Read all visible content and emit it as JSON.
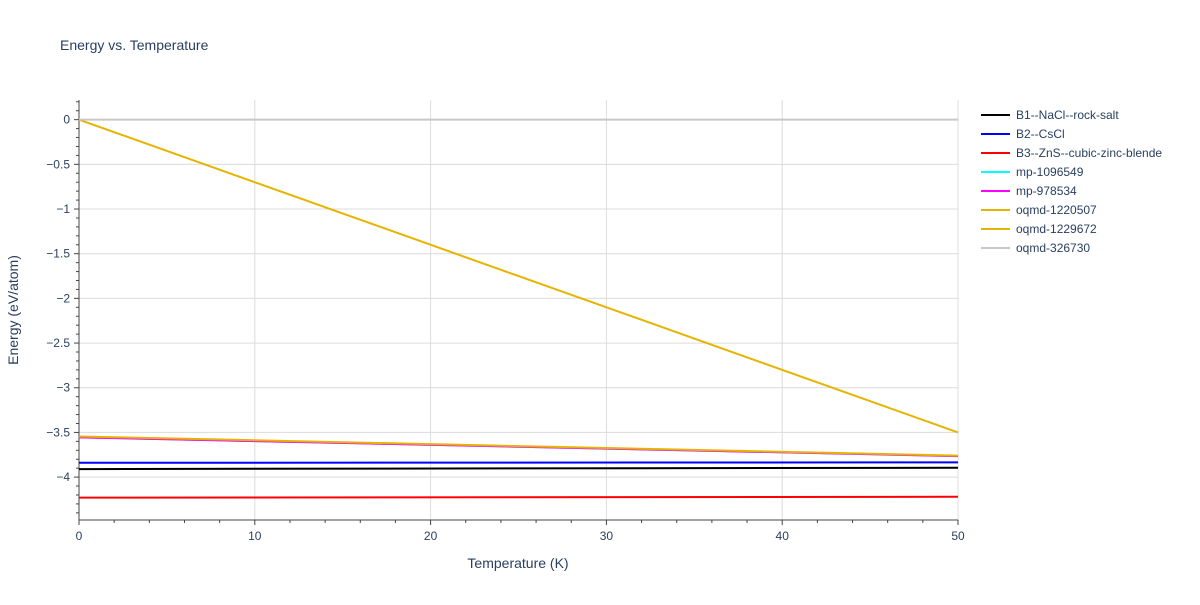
{
  "chart_data": {
    "type": "line",
    "title": "Energy vs. Temperature",
    "xlabel": "Temperature (K)",
    "ylabel": "Energy (eV/atom)",
    "xlim": [
      0,
      50
    ],
    "ylim": [
      -4.48,
      0.22
    ],
    "x_ticks": [
      0,
      10,
      20,
      30,
      40,
      50
    ],
    "x_tick_labels": [
      "0",
      "10",
      "20",
      "30",
      "40",
      "50"
    ],
    "y_ticks": [
      0,
      -0.5,
      -1,
      -1.5,
      -2,
      -2.5,
      -3,
      -3.5,
      -4
    ],
    "y_tick_labels": [
      "0",
      "−0.5",
      "−1",
      "−1.5",
      "−2",
      "−2.5",
      "−3",
      "−3.5",
      "−4"
    ],
    "grid": true,
    "legend_position": "right",
    "series": [
      {
        "name": "B1--NaCl--rock-salt",
        "color": "#000000",
        "x": [
          0,
          50
        ],
        "y": [
          -3.91,
          -3.895
        ]
      },
      {
        "name": "B2--CsCl",
        "color": "#0000ff",
        "x": [
          0,
          50
        ],
        "y": [
          -3.84,
          -3.835
        ]
      },
      {
        "name": "B3--ZnS--cubic-zinc-blende",
        "color": "#ff0000",
        "x": [
          0,
          50
        ],
        "y": [
          -4.23,
          -4.22
        ]
      },
      {
        "name": "mp-1096549",
        "color": "#00ffff",
        "x": [
          0,
          50
        ],
        "y": [
          -3.555,
          -3.765
        ]
      },
      {
        "name": "mp-978534",
        "color": "#ff00ff",
        "x": [
          0,
          50
        ],
        "y": [
          -3.555,
          -3.765
        ]
      },
      {
        "name": "oqmd-1220507",
        "color": "#e6b400",
        "x": [
          0,
          50
        ],
        "y": [
          0,
          -3.5
        ]
      },
      {
        "name": "oqmd-1229672",
        "color": "#e6b400",
        "x": [
          0,
          50
        ],
        "y": [
          -3.545,
          -3.76
        ]
      },
      {
        "name": "oqmd-326730",
        "color": "#c8c8c8",
        "x": [
          0,
          50
        ],
        "y": [
          0,
          0
        ]
      }
    ]
  }
}
